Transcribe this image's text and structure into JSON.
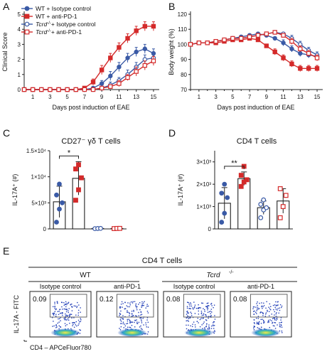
{
  "figure": {
    "panel_letters": [
      "A",
      "B",
      "C",
      "D",
      "E"
    ],
    "legend": [
      {
        "prefix": "WT",
        "suffix": " + Isotype control",
        "color": "#3a5aa6",
        "filled": true
      },
      {
        "prefix": "WT",
        "suffix": " + anti-PD-1",
        "color": "#d42a2a",
        "filled": true
      },
      {
        "prefix": "Tcrd",
        "sup": "-/-",
        "suffix": "+ Isotype control",
        "color": "#3a5aa6",
        "filled": false
      },
      {
        "prefix": "Tcrd",
        "sup": "-/-",
        "suffix": "+ anti-PD-1",
        "color": "#d42a2a",
        "filled": false
      }
    ],
    "panelE": {
      "title": "CD4 T cells",
      "group_wt": "WT",
      "group_ko": "Tcrd",
      "group_ko_sup": "-/-",
      "col_labels": [
        "Isotype control",
        "anti-PD-1",
        "Isotype control",
        "anti-PD-1"
      ],
      "percents": [
        "0.09",
        "0.12",
        "0.08",
        "0.08"
      ],
      "ylabel": "IL-17A - FITC",
      "xlabel": "CD4 – APCeFluor780"
    }
  },
  "chart_data": [
    {
      "panel": "A",
      "type": "line",
      "xlabel": "Days post induction of EAE",
      "ylabel": "Clinical Score",
      "xlim": [
        0,
        15.5
      ],
      "ylim": [
        0,
        5
      ],
      "xticks": [
        1,
        3,
        5,
        7,
        9,
        11,
        13,
        15
      ],
      "yticks": [
        0,
        1,
        2,
        3,
        4,
        5
      ],
      "x": [
        0,
        1,
        2,
        3,
        4,
        5,
        6,
        7,
        8,
        9,
        10,
        11,
        12,
        13,
        14,
        15
      ],
      "series": [
        {
          "name": "WT + Isotype control",
          "color": "#3a5aa6",
          "filled": true,
          "values": [
            0,
            0,
            0,
            0,
            0,
            0,
            0,
            0,
            0.1,
            0.4,
            0.9,
            1.5,
            2.1,
            2.5,
            2.7,
            2.4
          ],
          "errors": [
            0,
            0,
            0,
            0,
            0,
            0,
            0,
            0,
            0.1,
            0.2,
            0.3,
            0.3,
            0.3,
            0.3,
            0.3,
            0.3
          ]
        },
        {
          "name": "WT + anti-PD-1",
          "color": "#d42a2a",
          "filled": true,
          "values": [
            0,
            0,
            0,
            0,
            0,
            0,
            0,
            0.1,
            0.5,
            1.3,
            2.1,
            2.8,
            3.4,
            3.9,
            4.2,
            4.2
          ],
          "errors": [
            0,
            0,
            0,
            0,
            0,
            0,
            0,
            0.1,
            0.2,
            0.3,
            0.3,
            0.3,
            0.3,
            0.3,
            0.3,
            0.3
          ]
        },
        {
          "name": "Tcrd-/- + Isotype control",
          "color": "#3a5aa6",
          "filled": false,
          "values": [
            0,
            0,
            0,
            0,
            0,
            0,
            0,
            0,
            0,
            0.1,
            0.3,
            0.6,
            1.0,
            1.5,
            2.0,
            2.1
          ],
          "errors": [
            0,
            0,
            0,
            0,
            0,
            0,
            0,
            0,
            0,
            0.1,
            0.2,
            0.2,
            0.3,
            0.3,
            0.3,
            0.3
          ]
        },
        {
          "name": "Tcrd-/- + anti-PD-1",
          "color": "#d42a2a",
          "filled": false,
          "values": [
            0,
            0,
            0,
            0,
            0,
            0,
            0,
            0,
            0,
            0.1,
            0.2,
            0.4,
            0.8,
            1.2,
            1.6,
            1.9
          ],
          "errors": [
            0,
            0,
            0,
            0,
            0,
            0,
            0,
            0,
            0,
            0.1,
            0.1,
            0.2,
            0.2,
            0.3,
            0.3,
            0.3
          ]
        }
      ]
    },
    {
      "panel": "B",
      "type": "line",
      "xlabel": "Days post induction of EAE",
      "ylabel": "Body weight (%)",
      "xlim": [
        0,
        15.5
      ],
      "ylim": [
        70,
        120
      ],
      "xticks": [
        1,
        3,
        5,
        7,
        9,
        11,
        13,
        15
      ],
      "yticks": [
        70,
        80,
        90,
        100,
        110,
        120
      ],
      "x": [
        0,
        1,
        2,
        3,
        4,
        5,
        6,
        7,
        8,
        9,
        10,
        11,
        12,
        13,
        14,
        15
      ],
      "series": [
        {
          "name": "WT + Isotype control",
          "color": "#3a5aa6",
          "filled": true,
          "values": [
            100,
            101,
            101,
            102,
            103,
            104,
            105,
            106,
            107,
            106,
            104,
            101,
            97,
            94,
            93,
            92
          ],
          "errors": [
            0,
            1,
            1,
            1,
            1,
            1,
            1,
            1,
            1,
            1,
            1,
            2,
            2,
            2,
            2,
            2
          ]
        },
        {
          "name": "WT + anti-PD-1",
          "color": "#d42a2a",
          "filled": true,
          "values": [
            100,
            101,
            101,
            101,
            102,
            103,
            103,
            104,
            103,
            99,
            95,
            91,
            87,
            84,
            84,
            84
          ],
          "errors": [
            0,
            1,
            1,
            1,
            1,
            1,
            1,
            1,
            1,
            1,
            2,
            2,
            2,
            2,
            2,
            2
          ]
        },
        {
          "name": "Tcrd-/- + Isotype control",
          "color": "#3a5aa6",
          "filled": false,
          "values": [
            100,
            101,
            101,
            102,
            103,
            104,
            104,
            105,
            106,
            107,
            108,
            107,
            104,
            100,
            96,
            93
          ],
          "errors": [
            0,
            1,
            1,
            1,
            1,
            1,
            1,
            1,
            1,
            1,
            1,
            1,
            2,
            2,
            2,
            2
          ]
        },
        {
          "name": "Tcrd-/- + anti-PD-1",
          "color": "#d42a2a",
          "filled": false,
          "values": [
            100,
            101,
            101,
            102,
            103,
            104,
            104,
            105,
            106,
            107,
            108,
            106,
            102,
            97,
            94,
            91
          ],
          "errors": [
            0,
            1,
            1,
            1,
            1,
            1,
            1,
            1,
            1,
            1,
            1,
            1,
            2,
            2,
            2,
            2
          ]
        }
      ]
    },
    {
      "panel": "C",
      "type": "bar",
      "title": "CD27⁻ γδ T cells",
      "ylabel": "IL-17A⁺ (#)",
      "ylim": [
        0,
        15000
      ],
      "yticks": [
        0,
        5000,
        10000,
        15000
      ],
      "ytick_labels": [
        "0",
        "5×10³",
        "1×10⁴",
        "1.5×10⁴"
      ],
      "significance": {
        "bars": [
          0,
          1
        ],
        "label": "*"
      },
      "groups": [
        {
          "name": "WT + Isotype control",
          "color": "#3a5aa6",
          "filled": true,
          "mean": 5200,
          "sd": 3000,
          "points": [
            1300,
            3800,
            5000,
            6500,
            8600
          ],
          "marker": "circle"
        },
        {
          "name": "WT + anti-PD-1",
          "color": "#d42a2a",
          "filled": true,
          "mean": 9700,
          "sd": 3200,
          "points": [
            5500,
            7500,
            9800,
            11500,
            12300
          ],
          "marker": "square"
        },
        {
          "name": "Tcrd-/- + Isotype control",
          "color": "#3a5aa6",
          "filled": false,
          "mean": 80,
          "sd": 50,
          "points": [
            50,
            80,
            100
          ],
          "marker": "circle"
        },
        {
          "name": "Tcrd-/- + anti-PD-1",
          "color": "#d42a2a",
          "filled": false,
          "mean": 80,
          "sd": 50,
          "points": [
            60,
            90,
            100
          ],
          "marker": "square"
        }
      ]
    },
    {
      "panel": "D",
      "type": "bar",
      "title": "CD4 T cells",
      "ylabel": "IL-17A⁺ (#)",
      "ylim": [
        0,
        3500
      ],
      "yticks": [
        0,
        1000,
        2000,
        3000
      ],
      "ytick_labels": [
        "0",
        "1×10³",
        "2×10³",
        "3×10³"
      ],
      "significance": {
        "bars": [
          0,
          1
        ],
        "label": "**"
      },
      "groups": [
        {
          "name": "WT + Isotype control",
          "color": "#3a5aa6",
          "filled": true,
          "mean": 1150,
          "sd": 700,
          "points": [
            300,
            700,
            1400,
            1600,
            2000
          ],
          "marker": "circle"
        },
        {
          "name": "WT + anti-PD-1",
          "color": "#d42a2a",
          "filled": true,
          "mean": 2250,
          "sd": 300,
          "points": [
            1900,
            2100,
            2200,
            2400,
            2800
          ],
          "marker": "square"
        },
        {
          "name": "Tcrd-/- + Isotype control",
          "color": "#3a5aa6",
          "filled": false,
          "mean": 950,
          "sd": 300,
          "points": [
            500,
            850,
            950,
            1100,
            1300
          ],
          "marker": "circle"
        },
        {
          "name": "Tcrd-/- + anti-PD-1",
          "color": "#d42a2a",
          "filled": false,
          "mean": 1250,
          "sd": 550,
          "points": [
            500,
            1000,
            1500,
            1800
          ],
          "marker": "square"
        }
      ]
    }
  ]
}
